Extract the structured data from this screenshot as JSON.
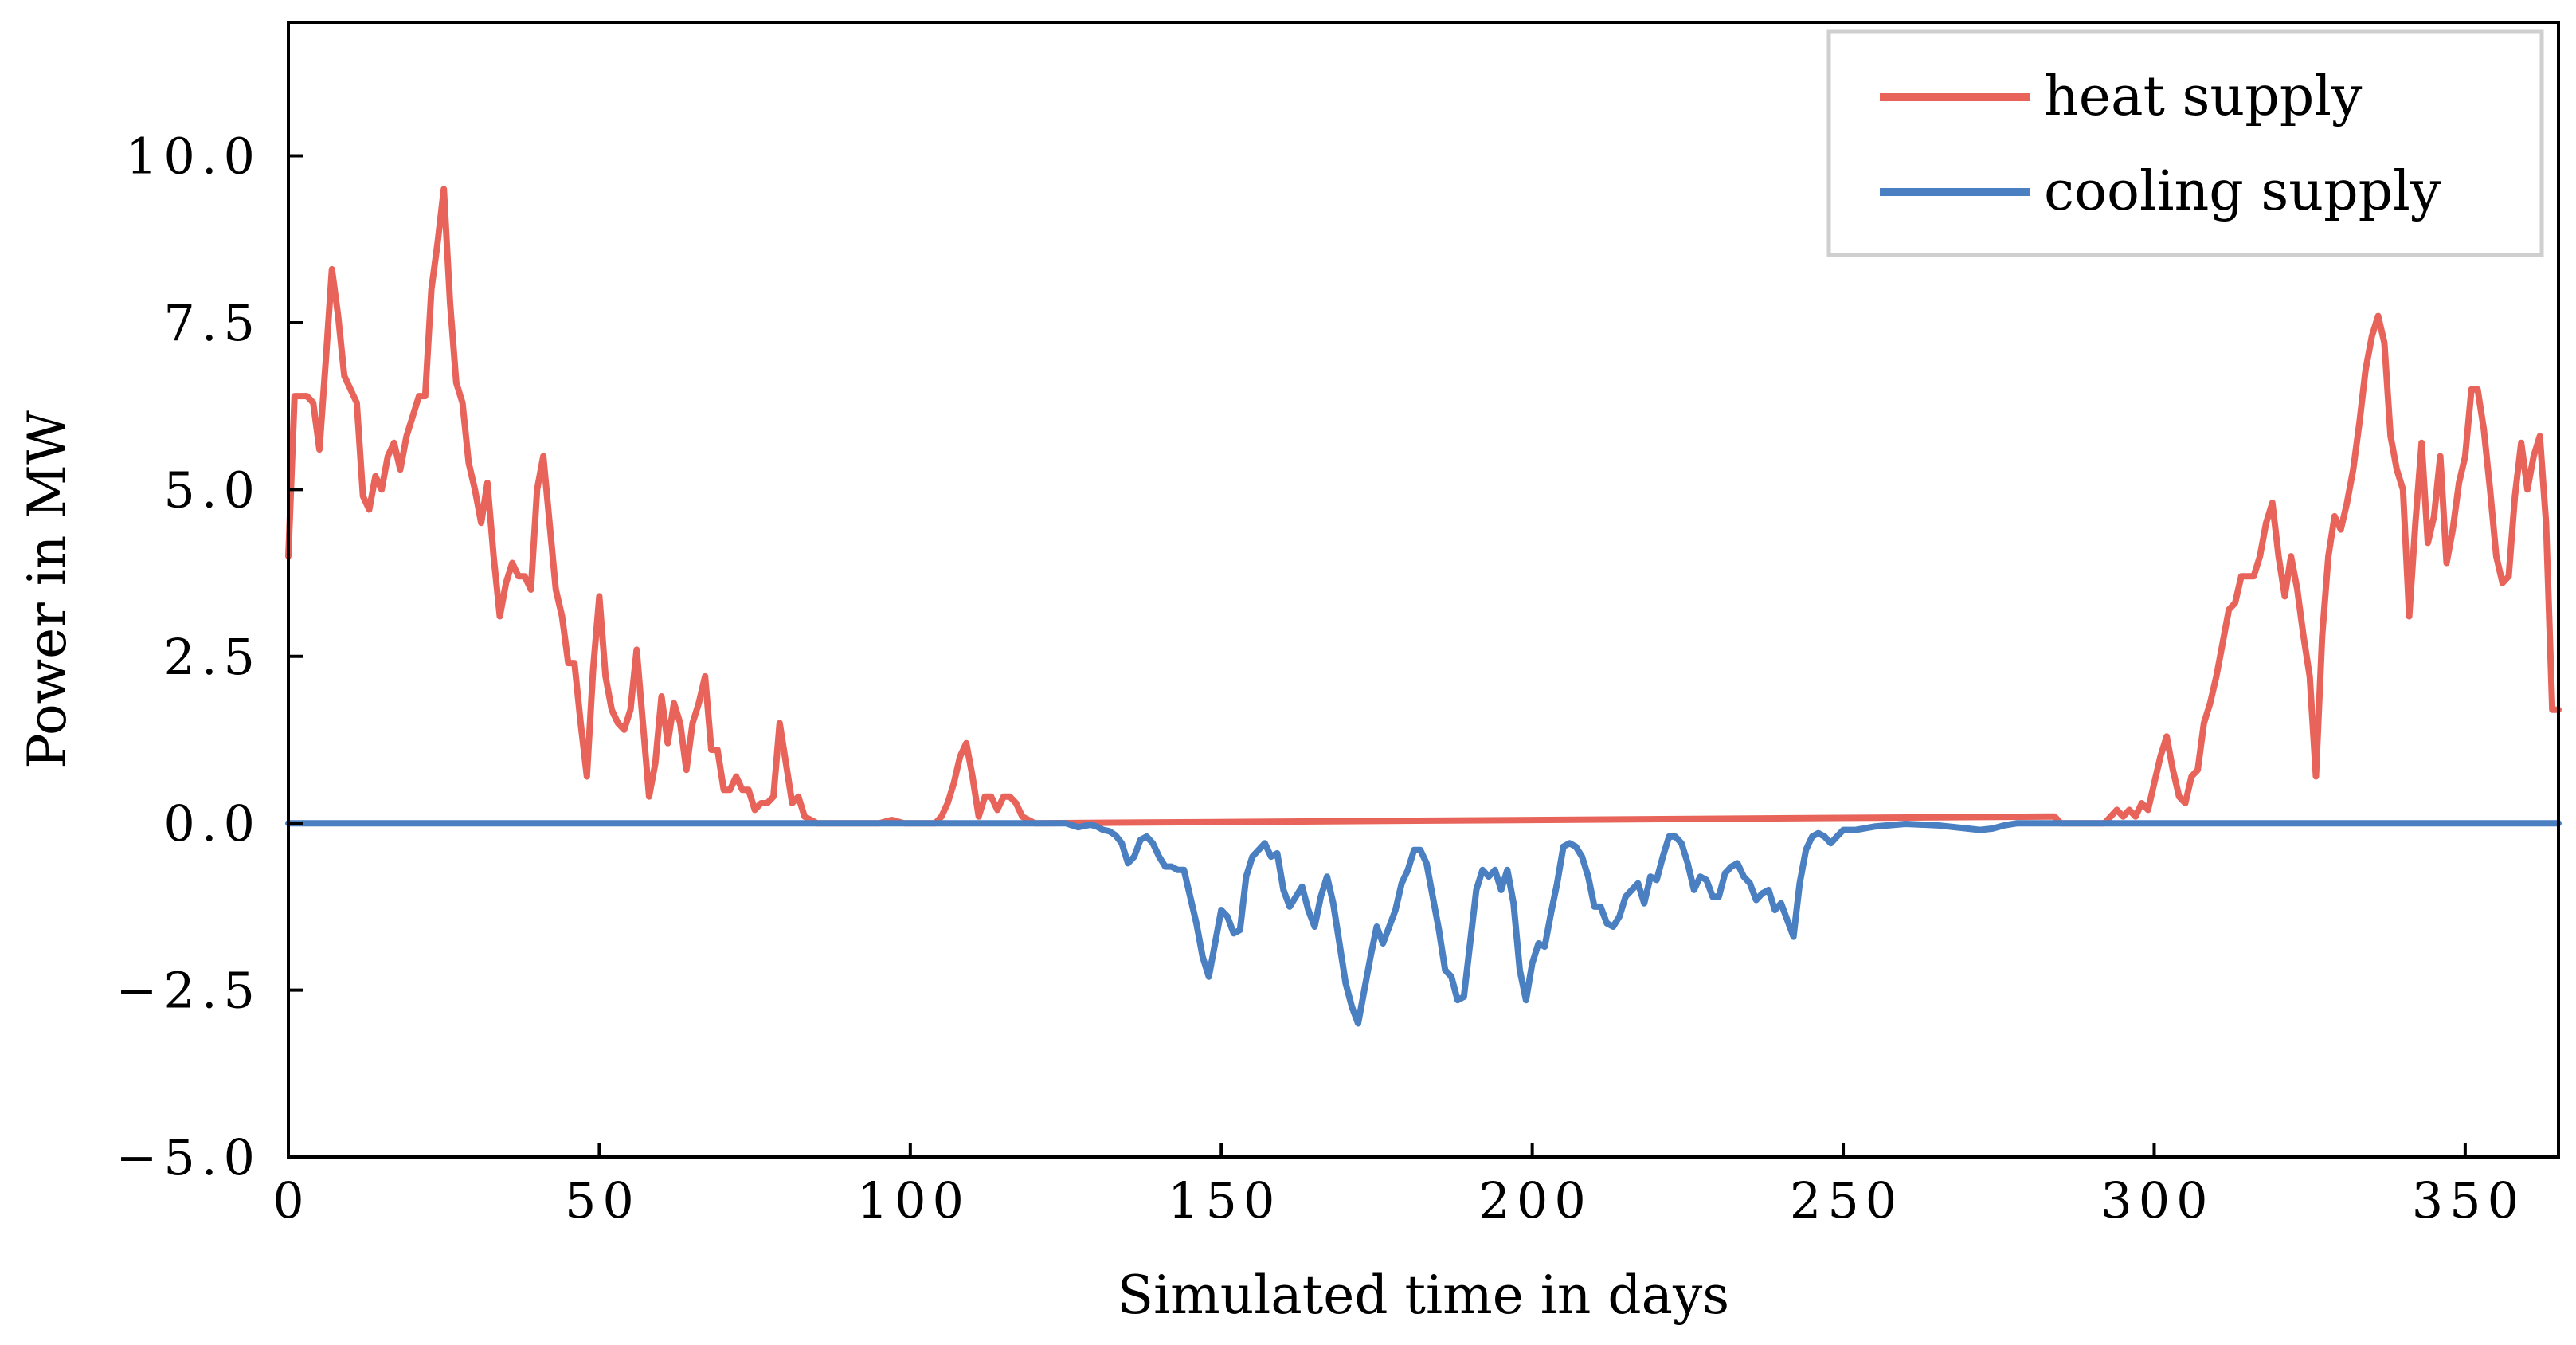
{
  "chart_data": {
    "type": "line",
    "title": "",
    "xlabel": "Simulated time in days",
    "ylabel": "Power in MW",
    "xlim": [
      0,
      365
    ],
    "ylim": [
      -5.0,
      12.0
    ],
    "xticks": [
      0,
      50,
      100,
      150,
      200,
      250,
      300,
      350
    ],
    "xtick_labels": [
      "0",
      "50",
      "100",
      "150",
      "200",
      "250",
      "300",
      "350"
    ],
    "yticks": [
      -5.0,
      -2.5,
      0.0,
      2.5,
      5.0,
      7.5,
      10.0
    ],
    "ytick_labels": [
      "−5.0",
      "−2.5",
      "0.0",
      "2.5",
      "5.0",
      "7.5",
      "10.0"
    ],
    "legend_position": "top-right",
    "grid": false,
    "series": [
      {
        "name": "heat supply",
        "color": "#e8645a",
        "points": [
          [
            0,
            4.0
          ],
          [
            1,
            6.4
          ],
          [
            3,
            6.4
          ],
          [
            4,
            6.3
          ],
          [
            5,
            5.6
          ],
          [
            6,
            6.9
          ],
          [
            7,
            8.3
          ],
          [
            8,
            7.6
          ],
          [
            9,
            6.7
          ],
          [
            10,
            6.5
          ],
          [
            11,
            6.3
          ],
          [
            12,
            4.9
          ],
          [
            13,
            4.7
          ],
          [
            14,
            5.2
          ],
          [
            15,
            5.0
          ],
          [
            16,
            5.5
          ],
          [
            17,
            5.7
          ],
          [
            18,
            5.3
          ],
          [
            19,
            5.8
          ],
          [
            20,
            6.1
          ],
          [
            21,
            6.4
          ],
          [
            22,
            6.4
          ],
          [
            23,
            8.0
          ],
          [
            24,
            8.7
          ],
          [
            25,
            9.5
          ],
          [
            26,
            7.8
          ],
          [
            27,
            6.6
          ],
          [
            28,
            6.3
          ],
          [
            29,
            5.4
          ],
          [
            30,
            5.0
          ],
          [
            31,
            4.5
          ],
          [
            32,
            5.1
          ],
          [
            33,
            4.0
          ],
          [
            34,
            3.1
          ],
          [
            35,
            3.6
          ],
          [
            36,
            3.9
          ],
          [
            37,
            3.7
          ],
          [
            38,
            3.7
          ],
          [
            39,
            3.5
          ],
          [
            40,
            5.0
          ],
          [
            41,
            5.5
          ],
          [
            42,
            4.5
          ],
          [
            43,
            3.5
          ],
          [
            44,
            3.1
          ],
          [
            45,
            2.4
          ],
          [
            46,
            2.4
          ],
          [
            47,
            1.5
          ],
          [
            48,
            0.7
          ],
          [
            49,
            2.3
          ],
          [
            50,
            3.4
          ],
          [
            51,
            2.2
          ],
          [
            52,
            1.7
          ],
          [
            53,
            1.5
          ],
          [
            54,
            1.4
          ],
          [
            55,
            1.7
          ],
          [
            56,
            2.6
          ],
          [
            57,
            1.5
          ],
          [
            58,
            0.4
          ],
          [
            59,
            0.9
          ],
          [
            60,
            1.9
          ],
          [
            61,
            1.2
          ],
          [
            62,
            1.8
          ],
          [
            63,
            1.5
          ],
          [
            64,
            0.8
          ],
          [
            65,
            1.5
          ],
          [
            66,
            1.8
          ],
          [
            67,
            2.2
          ],
          [
            68,
            1.1
          ],
          [
            69,
            1.1
          ],
          [
            70,
            0.5
          ],
          [
            71,
            0.5
          ],
          [
            72,
            0.7
          ],
          [
            73,
            0.5
          ],
          [
            74,
            0.5
          ],
          [
            75,
            0.2
          ],
          [
            76,
            0.3
          ],
          [
            77,
            0.3
          ],
          [
            78,
            0.4
          ],
          [
            79,
            1.5
          ],
          [
            80,
            0.9
          ],
          [
            81,
            0.3
          ],
          [
            82,
            0.4
          ],
          [
            83,
            0.1
          ],
          [
            85,
            0.0
          ],
          [
            95,
            0.0
          ],
          [
            97,
            0.05
          ],
          [
            99,
            0.0
          ],
          [
            104,
            0.0
          ],
          [
            105,
            0.1
          ],
          [
            106,
            0.3
          ],
          [
            107,
            0.6
          ],
          [
            108,
            1.0
          ],
          [
            109,
            1.2
          ],
          [
            110,
            0.7
          ],
          [
            111,
            0.1
          ],
          [
            112,
            0.4
          ],
          [
            113,
            0.4
          ],
          [
            114,
            0.2
          ],
          [
            115,
            0.4
          ],
          [
            116,
            0.4
          ],
          [
            117,
            0.3
          ],
          [
            118,
            0.1
          ],
          [
            120,
            0.0
          ],
          [
            283,
            0.1
          ],
          [
            284,
            0.1
          ],
          [
            285,
            0.0
          ],
          [
            292,
            0.0
          ],
          [
            293,
            0.1
          ],
          [
            294,
            0.2
          ],
          [
            295,
            0.1
          ],
          [
            296,
            0.2
          ],
          [
            297,
            0.1
          ],
          [
            298,
            0.3
          ],
          [
            299,
            0.2
          ],
          [
            300,
            0.6
          ],
          [
            301,
            1.0
          ],
          [
            302,
            1.3
          ],
          [
            303,
            0.8
          ],
          [
            304,
            0.4
          ],
          [
            305,
            0.3
          ],
          [
            306,
            0.7
          ],
          [
            307,
            0.8
          ],
          [
            308,
            1.5
          ],
          [
            309,
            1.8
          ],
          [
            310,
            2.2
          ],
          [
            311,
            2.7
          ],
          [
            312,
            3.2
          ],
          [
            313,
            3.3
          ],
          [
            314,
            3.7
          ],
          [
            315,
            3.7
          ],
          [
            316,
            3.7
          ],
          [
            317,
            4.0
          ],
          [
            318,
            4.5
          ],
          [
            319,
            4.8
          ],
          [
            320,
            4.0
          ],
          [
            321,
            3.4
          ],
          [
            322,
            4.0
          ],
          [
            323,
            3.5
          ],
          [
            324,
            2.8
          ],
          [
            325,
            2.2
          ],
          [
            326,
            0.7
          ],
          [
            327,
            2.8
          ],
          [
            328,
            4.0
          ],
          [
            329,
            4.6
          ],
          [
            330,
            4.4
          ],
          [
            331,
            4.8
          ],
          [
            332,
            5.3
          ],
          [
            333,
            6.0
          ],
          [
            334,
            6.8
          ],
          [
            335,
            7.3
          ],
          [
            336,
            7.6
          ],
          [
            337,
            7.2
          ],
          [
            338,
            5.8
          ],
          [
            339,
            5.3
          ],
          [
            340,
            5.0
          ],
          [
            341,
            3.1
          ],
          [
            342,
            4.5
          ],
          [
            343,
            5.7
          ],
          [
            344,
            4.2
          ],
          [
            345,
            4.6
          ],
          [
            346,
            5.5
          ],
          [
            347,
            3.9
          ],
          [
            348,
            4.4
          ],
          [
            349,
            5.1
          ],
          [
            350,
            5.5
          ],
          [
            351,
            6.5
          ],
          [
            352,
            6.5
          ],
          [
            353,
            5.9
          ],
          [
            354,
            5.0
          ],
          [
            355,
            4.0
          ],
          [
            356,
            3.6
          ],
          [
            357,
            3.7
          ],
          [
            358,
            4.9
          ],
          [
            359,
            5.7
          ],
          [
            360,
            5.0
          ],
          [
            361,
            5.5
          ],
          [
            362,
            5.8
          ],
          [
            363,
            4.5
          ],
          [
            364,
            1.7
          ],
          [
            365,
            1.7
          ]
        ]
      },
      {
        "name": "cooling supply",
        "color": "#4a7fc1",
        "points": [
          [
            0,
            0.0
          ],
          [
            125,
            0.0
          ],
          [
            126,
            -0.03
          ],
          [
            127,
            -0.06
          ],
          [
            128,
            -0.04
          ],
          [
            129,
            -0.02
          ],
          [
            130,
            -0.05
          ],
          [
            131,
            -0.1
          ],
          [
            132,
            -0.12
          ],
          [
            133,
            -0.18
          ],
          [
            134,
            -0.3
          ],
          [
            135,
            -0.6
          ],
          [
            136,
            -0.5
          ],
          [
            137,
            -0.25
          ],
          [
            138,
            -0.2
          ],
          [
            139,
            -0.3
          ],
          [
            140,
            -0.5
          ],
          [
            141,
            -0.65
          ],
          [
            142,
            -0.65
          ],
          [
            143,
            -0.7
          ],
          [
            144,
            -0.7
          ],
          [
            145,
            -1.1
          ],
          [
            146,
            -1.5
          ],
          [
            147,
            -2.0
          ],
          [
            148,
            -2.3
          ],
          [
            149,
            -1.8
          ],
          [
            150,
            -1.3
          ],
          [
            151,
            -1.4
          ],
          [
            152,
            -1.65
          ],
          [
            153,
            -1.6
          ],
          [
            154,
            -0.8
          ],
          [
            155,
            -0.5
          ],
          [
            156,
            -0.4
          ],
          [
            157,
            -0.3
          ],
          [
            158,
            -0.5
          ],
          [
            159,
            -0.45
          ],
          [
            160,
            -1.0
          ],
          [
            161,
            -1.25
          ],
          [
            162,
            -1.1
          ],
          [
            163,
            -0.95
          ],
          [
            164,
            -1.3
          ],
          [
            165,
            -1.55
          ],
          [
            166,
            -1.1
          ],
          [
            167,
            -0.8
          ],
          [
            168,
            -1.2
          ],
          [
            169,
            -1.8
          ],
          [
            170,
            -2.4
          ],
          [
            171,
            -2.75
          ],
          [
            172,
            -3.0
          ],
          [
            173,
            -2.5
          ],
          [
            174,
            -2.0
          ],
          [
            175,
            -1.55
          ],
          [
            176,
            -1.8
          ],
          [
            177,
            -1.55
          ],
          [
            178,
            -1.3
          ],
          [
            179,
            -0.9
          ],
          [
            180,
            -0.7
          ],
          [
            181,
            -0.4
          ],
          [
            182,
            -0.4
          ],
          [
            183,
            -0.6
          ],
          [
            184,
            -1.1
          ],
          [
            185,
            -1.6
          ],
          [
            186,
            -2.2
          ],
          [
            187,
            -2.3
          ],
          [
            188,
            -2.65
          ],
          [
            189,
            -2.6
          ],
          [
            190,
            -1.8
          ],
          [
            191,
            -1.0
          ],
          [
            192,
            -0.7
          ],
          [
            193,
            -0.8
          ],
          [
            194,
            -0.7
          ],
          [
            195,
            -1.0
          ],
          [
            196,
            -0.7
          ],
          [
            197,
            -1.2
          ],
          [
            198,
            -2.2
          ],
          [
            199,
            -2.65
          ],
          [
            200,
            -2.1
          ],
          [
            201,
            -1.8
          ],
          [
            202,
            -1.85
          ],
          [
            203,
            -1.35
          ],
          [
            204,
            -0.9
          ],
          [
            205,
            -0.35
          ],
          [
            206,
            -0.3
          ],
          [
            207,
            -0.35
          ],
          [
            208,
            -0.5
          ],
          [
            209,
            -0.8
          ],
          [
            210,
            -1.25
          ],
          [
            211,
            -1.25
          ],
          [
            212,
            -1.5
          ],
          [
            213,
            -1.55
          ],
          [
            214,
            -1.4
          ],
          [
            215,
            -1.1
          ],
          [
            216,
            -1.0
          ],
          [
            217,
            -0.9
          ],
          [
            218,
            -1.2
          ],
          [
            219,
            -0.8
          ],
          [
            220,
            -0.85
          ],
          [
            221,
            -0.5
          ],
          [
            222,
            -0.2
          ],
          [
            223,
            -0.2
          ],
          [
            224,
            -0.3
          ],
          [
            225,
            -0.6
          ],
          [
            226,
            -1.0
          ],
          [
            227,
            -0.8
          ],
          [
            228,
            -0.85
          ],
          [
            229,
            -1.1
          ],
          [
            230,
            -1.1
          ],
          [
            231,
            -0.75
          ],
          [
            232,
            -0.65
          ],
          [
            233,
            -0.6
          ],
          [
            234,
            -0.8
          ],
          [
            235,
            -0.9
          ],
          [
            236,
            -1.15
          ],
          [
            237,
            -1.05
          ],
          [
            238,
            -1.0
          ],
          [
            239,
            -1.3
          ],
          [
            240,
            -1.2
          ],
          [
            241,
            -1.45
          ],
          [
            242,
            -1.7
          ],
          [
            243,
            -0.9
          ],
          [
            244,
            -0.4
          ],
          [
            245,
            -0.2
          ],
          [
            246,
            -0.15
          ],
          [
            247,
            -0.2
          ],
          [
            248,
            -0.3
          ],
          [
            249,
            -0.2
          ],
          [
            250,
            -0.1
          ],
          [
            252,
            -0.1
          ],
          [
            255,
            -0.05
          ],
          [
            260,
            -0.01
          ],
          [
            265,
            -0.03
          ],
          [
            270,
            -0.08
          ],
          [
            272,
            -0.1
          ],
          [
            274,
            -0.08
          ],
          [
            276,
            -0.03
          ],
          [
            278,
            0.0
          ],
          [
            365,
            0.0
          ]
        ]
      }
    ]
  },
  "legend": {
    "items": [
      {
        "label": "heat supply",
        "color": "#e8645a"
      },
      {
        "label": "cooling supply",
        "color": "#4a7fc1"
      }
    ]
  }
}
